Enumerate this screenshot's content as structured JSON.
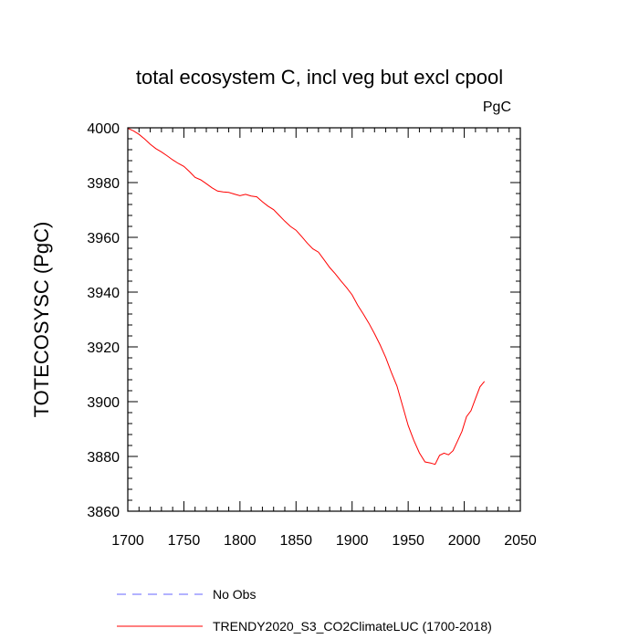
{
  "chart_data": {
    "type": "line",
    "title": "total ecosystem C, incl veg but excl cpool",
    "units": "PgC",
    "xlabel": "",
    "ylabel": "TOTECOSYSC  (PgC)",
    "xlim": [
      1700,
      2050
    ],
    "ylim": [
      3860,
      4000
    ],
    "x_ticks": [
      1700,
      1750,
      1800,
      1850,
      1900,
      1950,
      2000,
      2050
    ],
    "y_ticks": [
      3860,
      3880,
      3900,
      3920,
      3940,
      3960,
      3980,
      4000
    ],
    "grid": false,
    "legend_position": "bottom",
    "series": [
      {
        "name": "TRENDY2020_S3_CO2ClimateLUC (1700-2018)",
        "color": "#ff0000",
        "style": "solid",
        "x": [
          1700,
          1705,
          1710,
          1715,
          1720,
          1725,
          1730,
          1735,
          1740,
          1745,
          1750,
          1755,
          1760,
          1765,
          1770,
          1775,
          1780,
          1785,
          1790,
          1795,
          1800,
          1805,
          1810,
          1815,
          1820,
          1825,
          1830,
          1835,
          1840,
          1845,
          1850,
          1855,
          1860,
          1865,
          1870,
          1875,
          1880,
          1885,
          1890,
          1895,
          1900,
          1905,
          1910,
          1915,
          1920,
          1925,
          1930,
          1935,
          1940,
          1945,
          1950,
          1955,
          1960,
          1965,
          1970,
          1974,
          1978,
          1982,
          1986,
          1990,
          1994,
          1998,
          2002,
          2006,
          2010,
          2014,
          2018
        ],
        "y": [
          3999.8,
          3998.9,
          3997.6,
          3995.9,
          3994.0,
          3992.4,
          3991.2,
          3989.8,
          3988.3,
          3987.0,
          3985.9,
          3984.0,
          3981.9,
          3981.0,
          3979.6,
          3978.1,
          3976.9,
          3976.6,
          3976.4,
          3975.8,
          3975.2,
          3975.7,
          3975.1,
          3974.8,
          3973.0,
          3971.4,
          3970.1,
          3968.0,
          3965.9,
          3964.0,
          3962.6,
          3960.3,
          3957.9,
          3955.8,
          3954.6,
          3951.8,
          3949.0,
          3946.7,
          3944.1,
          3941.7,
          3939.0,
          3935.2,
          3932.0,
          3928.6,
          3924.8,
          3920.7,
          3916.1,
          3910.7,
          3905.7,
          3898.5,
          3891.3,
          3885.9,
          3881.3,
          3878.0,
          3877.6,
          3877.1,
          3880.4,
          3881.2,
          3880.6,
          3882.1,
          3885.6,
          3889.2,
          3894.5,
          3896.7,
          3901.1,
          3905.4,
          3907.4
        ]
      }
    ]
  },
  "legend": [
    {
      "label": "No Obs",
      "color": "#6666ff",
      "style": "dashed"
    },
    {
      "label": "TRENDY2020_S3_CO2ClimateLUC (1700-2018)",
      "color": "#ff0000",
      "style": "solid"
    }
  ]
}
